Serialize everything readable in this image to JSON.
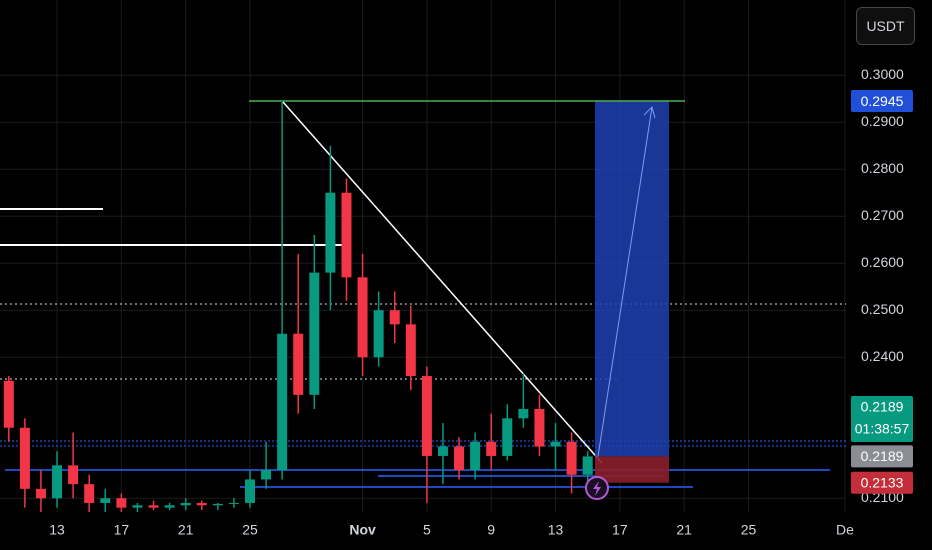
{
  "chart_data": {
    "type": "candlestick",
    "currency": "USDT",
    "categories": [
      null,
      null,
      null,
      "13",
      null,
      null,
      null,
      "17",
      null,
      null,
      null,
      "21",
      null,
      null,
      null,
      "25",
      null,
      null,
      null,
      null,
      null,
      null,
      "Nov",
      null,
      null,
      null,
      "5",
      null,
      null,
      null,
      "9",
      null,
      null,
      null,
      "13",
      null,
      null,
      null,
      "17",
      null,
      null,
      null,
      "21",
      null,
      null,
      null,
      "25",
      null,
      null,
      null,
      null,
      null,
      "De"
    ],
    "open": [
      0.235,
      0.225,
      0.212,
      0.21,
      0.217,
      0.213,
      0.209,
      0.21,
      0.208,
      0.2085,
      0.208,
      0.2085,
      0.209,
      0.2085,
      0.2088,
      0.209,
      0.214,
      0.216,
      0.245,
      0.232,
      0.258,
      0.275,
      0.257,
      0.24,
      0.25,
      0.247,
      0.236,
      0.219,
      0.221,
      0.216,
      0.222,
      0.219,
      0.227,
      0.229,
      0.221,
      0.222,
      0.215,
      null,
      null,
      null,
      null,
      null,
      null,
      null,
      null,
      null,
      null,
      null,
      null,
      null,
      null,
      null,
      null
    ],
    "high": [
      0.236,
      0.227,
      0.216,
      0.22,
      0.224,
      0.215,
      0.212,
      0.211,
      0.209,
      0.2095,
      0.209,
      0.21,
      0.2095,
      0.209,
      0.21,
      0.216,
      0.222,
      0.2945,
      0.262,
      0.266,
      0.285,
      0.278,
      0.262,
      0.254,
      0.254,
      0.251,
      0.238,
      0.226,
      0.223,
      0.224,
      0.228,
      0.23,
      0.2365,
      0.232,
      0.226,
      0.224,
      0.22,
      null,
      null,
      null,
      null,
      null,
      null,
      null,
      null,
      null,
      null,
      null,
      null,
      null,
      null,
      null,
      null
    ],
    "low": [
      0.222,
      0.208,
      0.207,
      0.208,
      0.21,
      0.207,
      0.207,
      0.207,
      0.207,
      0.2075,
      0.2075,
      0.2075,
      0.2075,
      0.2075,
      0.208,
      0.208,
      0.212,
      0.214,
      0.228,
      0.229,
      0.25,
      0.252,
      0.236,
      0.238,
      0.243,
      0.233,
      0.209,
      0.213,
      0.214,
      0.214,
      0.216,
      0.218,
      0.225,
      0.219,
      0.216,
      0.211,
      0.213,
      null,
      null,
      null,
      null,
      null,
      null,
      null,
      null,
      null,
      null,
      null,
      null,
      null,
      null,
      null,
      null
    ],
    "close": [
      0.225,
      0.212,
      0.21,
      0.217,
      0.213,
      0.209,
      0.21,
      0.208,
      0.2085,
      0.208,
      0.2085,
      0.209,
      0.2085,
      0.2088,
      0.209,
      0.214,
      0.216,
      0.245,
      0.232,
      0.258,
      0.275,
      0.257,
      0.24,
      0.25,
      0.247,
      0.236,
      0.219,
      0.221,
      0.216,
      0.222,
      0.219,
      0.227,
      0.229,
      0.221,
      0.222,
      0.215,
      0.2189,
      null,
      null,
      null,
      null,
      null,
      null,
      null,
      null,
      null,
      null,
      null,
      null,
      null,
      null,
      null,
      null
    ],
    "up_color": "#089981",
    "down_color": "#f23645",
    "ylim": [
      0.2075,
      0.316
    ],
    "yticks": [
      {
        "value": 0.21,
        "label": "0.2100"
      },
      {
        "value": 0.24,
        "label": "0.2400"
      },
      {
        "value": 0.25,
        "label": "0.2500"
      },
      {
        "value": 0.26,
        "label": "0.2600"
      },
      {
        "value": 0.27,
        "label": "0.2700"
      },
      {
        "value": 0.28,
        "label": "0.2800"
      },
      {
        "value": 0.29,
        "label": "0.2900"
      },
      {
        "value": 0.3,
        "label": "0.3000"
      }
    ],
    "grid": true,
    "position": {
      "target": 0.2945,
      "entry": 0.2189,
      "stop": 0.2133
    },
    "last_price": 0.2189,
    "countdown": "01:38:57"
  }
}
